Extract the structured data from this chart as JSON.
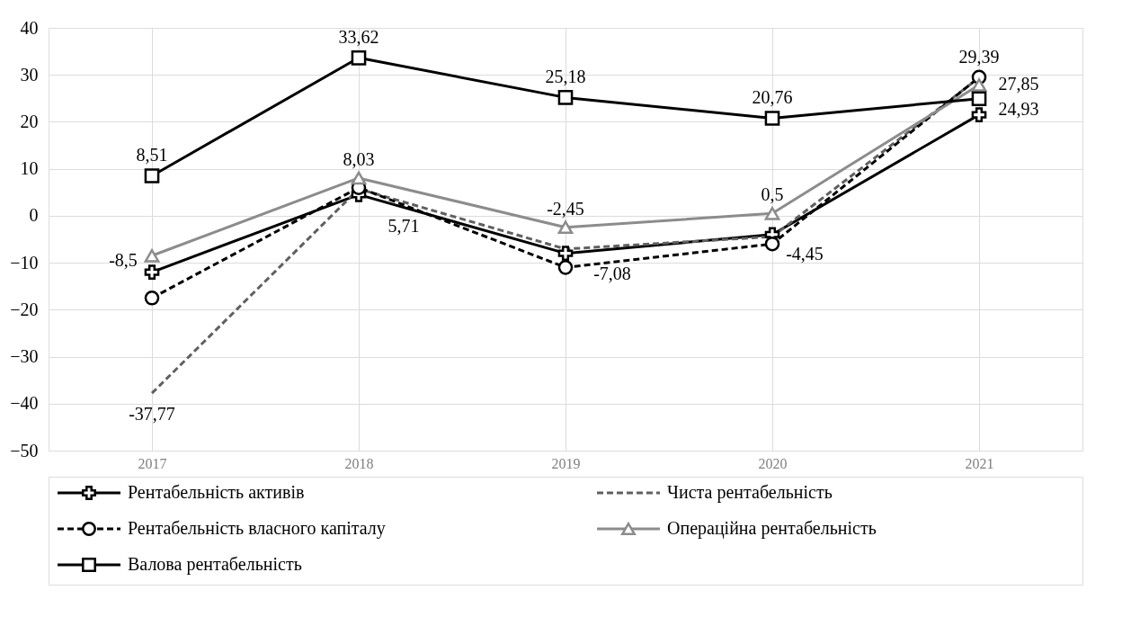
{
  "chart_data": {
    "type": "line",
    "categories": [
      "2017",
      "2018",
      "2019",
      "2020",
      "2021"
    ],
    "series": [
      {
        "name": "Рентабельність активів",
        "color": "#000000",
        "marker": "cross",
        "line_style": "solid",
        "values": [
          -12,
          4.5,
          -8,
          -4,
          21.5
        ]
      },
      {
        "name": "Чиста рентабельність",
        "color": "#606060",
        "marker": "none",
        "line_style": "dashed",
        "values": [
          -37.77,
          5.71,
          -7.08,
          -4.45,
          29.39
        ],
        "value_labels": [
          "-37,77",
          "5,71",
          "-7,08",
          "-4,45",
          "29,39"
        ]
      },
      {
        "name": "Рентабельність власного капіталу",
        "color": "#000000",
        "marker": "circle",
        "line_style": "dashed",
        "values": [
          -17.5,
          6,
          -11,
          -6,
          29.5
        ]
      },
      {
        "name": "Операційна рентабельність",
        "color": "#8c8c8c",
        "marker": "triangle",
        "line_style": "solid",
        "values": [
          -8.5,
          8.03,
          -2.45,
          0.5,
          27.85
        ],
        "value_labels": [
          "-8,5",
          "8,03",
          "-2,45",
          "0,5",
          "27,85"
        ]
      },
      {
        "name": "Валова рентабельність",
        "color": "#000000",
        "marker": "square",
        "line_style": "solid",
        "values": [
          8.51,
          33.62,
          25.18,
          20.76,
          24.93
        ],
        "value_labels": [
          "8,51",
          "33,62",
          "25,18",
          "20,76",
          "24,93"
        ]
      }
    ],
    "ylim": [
      -50,
      40
    ],
    "yticks": [
      -50,
      -40,
      -30,
      -20,
      -10,
      0,
      10,
      20,
      30,
      40
    ],
    "grid": true,
    "legend": "bottom"
  }
}
